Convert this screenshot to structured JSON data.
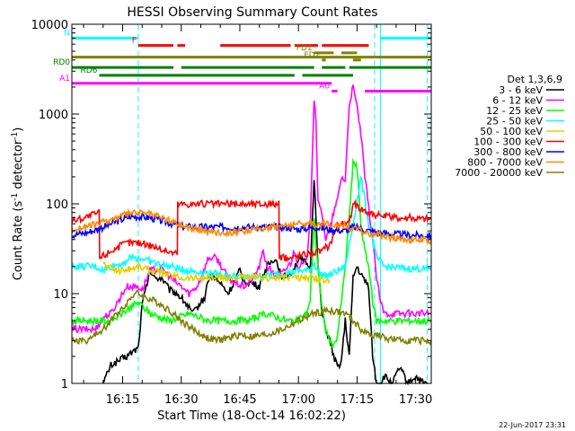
{
  "chart_data": {
    "type": "line",
    "title": "HESSI Observing Summary Count Rates",
    "xlabel": "Start Time (18-Oct-14 16:02:22)",
    "ylabel_main": "Count Rate (s",
    "ylabel_sup1": "-1",
    "ylabel_mid": " detector",
    "ylabel_sup2": "-1",
    "ylabel_end": ")",
    "footer_timestamp": "22-Jun-2017 23:31",
    "x_axis": {
      "start_minutes": 0,
      "end_minutes": 92,
      "ticks": [
        {
          "t": 13,
          "label": "16:15"
        },
        {
          "t": 28,
          "label": "16:30"
        },
        {
          "t": 43,
          "label": "16:45"
        },
        {
          "t": 58,
          "label": "17:00"
        },
        {
          "t": 73,
          "label": "17:15"
        },
        {
          "t": 88,
          "label": "17:30"
        }
      ]
    },
    "y_axis": {
      "scale": "log",
      "ylim": [
        1,
        10000
      ],
      "ticks": [
        {
          "v": 1,
          "label": "1"
        },
        {
          "v": 10,
          "label": "10"
        },
        {
          "v": 100,
          "label": "100"
        },
        {
          "v": 1000,
          "label": "1000"
        },
        {
          "v": 10000,
          "label": "10000"
        }
      ]
    },
    "legend": {
      "title": "Det 1,3,6,9",
      "placement": "right",
      "entries": [
        {
          "label": "3 - 6 keV",
          "color": "#000000"
        },
        {
          "label": "6 - 12 keV",
          "color": "#ff00ff"
        },
        {
          "label": "12 - 25 keV",
          "color": "#00ff00"
        },
        {
          "label": "25 - 50 keV",
          "color": "#00ffff"
        },
        {
          "label": "50 - 100 keV",
          "color": "#e0d000"
        },
        {
          "label": "100 - 300 keV",
          "color": "#ff0000"
        },
        {
          "label": "300 - 800 keV",
          "color": "#0000ff"
        },
        {
          "label": "800 - 7000 keV",
          "color": "#ff8800"
        },
        {
          "label": "7000 - 20000 keV",
          "color": "#808000"
        }
      ]
    },
    "flag_bars": [
      {
        "label": "N",
        "color": "#00ffff",
        "y": 7000,
        "segments": [
          [
            0,
            17
          ],
          [
            79,
            92
          ]
        ]
      },
      {
        "label": "F",
        "color": "#ff0000",
        "y": 5800,
        "segments": [
          [
            17,
            26
          ],
          [
            27,
            29
          ],
          [
            38,
            56
          ],
          [
            57,
            63
          ],
          [
            64,
            76
          ]
        ]
      },
      {
        "label": "FD1",
        "color": "#808000",
        "y": 4800,
        "segments": [
          [
            62,
            67
          ],
          [
            69,
            73
          ]
        ]
      },
      {
        "label": "FD2",
        "color": "#808000",
        "y": 4000,
        "segments": [
          [
            64,
            65
          ],
          [
            72,
            74
          ]
        ]
      },
      {
        "label": "",
        "color": "#808000",
        "y": 4300,
        "segments": [
          [
            0,
            92
          ]
        ]
      },
      {
        "label": "RD0",
        "color": "#008000",
        "y": 3300,
        "segments": [
          [
            0,
            26
          ],
          [
            28,
            62
          ],
          [
            64,
            70
          ],
          [
            71,
            92
          ]
        ]
      },
      {
        "label": "RD6",
        "color": "#008000",
        "y": 2700,
        "segments": [
          [
            7,
            17
          ],
          [
            17,
            57
          ],
          [
            59,
            72
          ]
        ]
      },
      {
        "label": "A1",
        "color": "#ff00ff",
        "y": 2200,
        "segments": [
          [
            0,
            62
          ],
          [
            62,
            66.5
          ]
        ]
      },
      {
        "label": "A0",
        "color": "#ff00ff",
        "y": 1800,
        "segments": [
          [
            66.5,
            68
          ],
          [
            75,
            92
          ]
        ]
      }
    ],
    "vlines": [
      {
        "t": 0,
        "color": "#00ffff",
        "style": "solid"
      },
      {
        "t": 17,
        "color": "#00ffff",
        "style": "dashed"
      },
      {
        "t": 77.5,
        "color": "#00ffff",
        "style": "dashed"
      },
      {
        "t": 79,
        "color": "#00ffff",
        "style": "solid"
      },
      {
        "t": 91,
        "color": "#00ffff",
        "style": "dashed"
      }
    ],
    "series": [
      {
        "name": "3 - 6 keV",
        "color": "#000000",
        "x": [
          8,
          10,
          14,
          17,
          18,
          20,
          21,
          23,
          25,
          27,
          29,
          31,
          33,
          34,
          35,
          36,
          38,
          40,
          41,
          43,
          44,
          46,
          48,
          49,
          50,
          52,
          54,
          56,
          57,
          58,
          60,
          61,
          62,
          63,
          64,
          65,
          66,
          67,
          68,
          69,
          70,
          71,
          72,
          73,
          74,
          75,
          76,
          77,
          78,
          79,
          80,
          82,
          84,
          86,
          88,
          90,
          91
        ],
        "y": [
          1,
          1.6,
          2,
          2.5,
          7.5,
          18,
          15,
          15,
          11,
          10,
          8,
          6,
          8,
          9,
          15,
          16,
          13,
          10,
          12,
          18,
          14,
          13,
          12,
          16,
          20,
          25,
          15,
          17,
          20,
          24,
          22,
          18,
          200,
          22,
          6,
          4,
          3,
          2,
          1.5,
          1.8,
          5,
          2,
          15,
          20,
          16,
          14,
          12,
          2,
          1,
          1,
          1.2,
          1,
          1.5,
          1,
          1.2,
          1,
          1
        ]
      },
      {
        "name": "6 - 12 keV",
        "color": "#ff00ff",
        "x": [
          0,
          6,
          8,
          10,
          14,
          17,
          18,
          20,
          23,
          26,
          28,
          30,
          32,
          33,
          35,
          37,
          40,
          42,
          44,
          46,
          48,
          49,
          50,
          52,
          54,
          56,
          57,
          58,
          60,
          61,
          62,
          62.5,
          63,
          64,
          65,
          66,
          67,
          68,
          69,
          70,
          71,
          72,
          73,
          74,
          75,
          76,
          77,
          78,
          79,
          80,
          85,
          92
        ],
        "y": [
          4,
          4,
          5.5,
          6,
          12,
          12,
          11,
          18,
          19,
          14,
          12,
          10,
          12,
          15,
          25,
          25,
          15,
          13,
          12,
          14,
          20,
          30,
          20,
          16,
          17,
          22,
          30,
          20,
          22,
          60,
          1500,
          900,
          100,
          80,
          40,
          50,
          80,
          110,
          200,
          180,
          1300,
          2000,
          1200,
          600,
          200,
          90,
          40,
          15,
          8,
          6,
          6,
          6
        ]
      },
      {
        "name": "12 - 25 keV",
        "color": "#00ff00",
        "x": [
          0,
          8,
          10,
          14,
          17,
          20,
          25,
          30,
          35,
          40,
          45,
          50,
          55,
          58,
          60,
          61,
          62,
          63,
          64,
          65,
          66,
          67,
          68,
          69,
          70,
          71,
          72,
          73,
          74,
          75,
          76,
          77,
          78,
          80,
          85,
          92
        ],
        "y": [
          5,
          5,
          5,
          6.5,
          8,
          6,
          5,
          6,
          5,
          5,
          5,
          6,
          5,
          5,
          6,
          8,
          70,
          20,
          7,
          4,
          3,
          2.5,
          3.5,
          8,
          20,
          70,
          300,
          250,
          60,
          30,
          20,
          8,
          5,
          5,
          5,
          5
        ]
      },
      {
        "name": "25 - 50 keV",
        "color": "#00ffff",
        "x": [
          0,
          6,
          8,
          10,
          13,
          15,
          17,
          19,
          21,
          25,
          30,
          35,
          40,
          45,
          50,
          55,
          58,
          60,
          61,
          62,
          63,
          64,
          65,
          66,
          67,
          70,
          72,
          74,
          76,
          78,
          80,
          86,
          92
        ],
        "y": [
          20,
          20,
          18,
          20,
          22,
          25,
          25,
          24,
          22,
          20,
          18,
          17,
          16,
          15,
          16,
          17,
          18,
          18,
          19,
          22,
          18,
          16,
          16,
          16,
          17,
          20,
          60,
          200,
          60,
          25,
          20,
          19,
          19
        ]
      },
      {
        "name": "50 - 100 keV",
        "color": "#e0d000",
        "x": [
          8,
          9,
          12,
          15,
          17,
          19,
          21,
          23,
          25,
          26,
          28,
          30,
          33,
          36,
          40,
          44,
          48,
          52,
          55,
          58,
          60,
          62,
          64,
          66
        ],
        "y": [
          22,
          20,
          18,
          19,
          20,
          19,
          18,
          17,
          16,
          16,
          15,
          15,
          15,
          15,
          15,
          15,
          15,
          15,
          15,
          15,
          15,
          15,
          14,
          14
        ]
      },
      {
        "name": "100 - 300 keV",
        "color": "#ff0000",
        "x": [
          0,
          3,
          7,
          7.1,
          10,
          14,
          17,
          20,
          24,
          27,
          27.1,
          30,
          35,
          40,
          45,
          50,
          53,
          53.1,
          56,
          60,
          64,
          66,
          68,
          70,
          71,
          72,
          74,
          76,
          78,
          80,
          85,
          92
        ],
        "y": [
          65,
          70,
          80,
          25,
          30,
          37,
          37,
          35,
          30,
          28,
          100,
          100,
          100,
          100,
          100,
          100,
          100,
          25,
          25,
          28,
          30,
          35,
          60,
          60,
          60,
          100,
          90,
          80,
          75,
          72,
          70,
          68
        ]
      },
      {
        "name": "300 - 800 keV",
        "color": "#0000ff",
        "x": [
          0,
          4,
          8,
          12,
          15,
          17,
          20,
          24,
          28,
          32,
          36,
          40,
          45,
          50,
          55,
          58,
          62,
          66,
          70,
          72,
          74,
          76,
          80,
          85,
          92
        ],
        "y": [
          45,
          48,
          55,
          65,
          72,
          72,
          70,
          63,
          56,
          55,
          55,
          55,
          55,
          55,
          55,
          52,
          55,
          52,
          50,
          55,
          53,
          50,
          47,
          45,
          44
        ]
      },
      {
        "name": "800 - 7000 keV",
        "color": "#ff8800",
        "x": [
          0,
          4,
          8,
          12,
          15,
          17,
          20,
          24,
          28,
          32,
          36,
          40,
          45,
          50,
          55,
          58,
          62,
          66,
          70,
          74,
          78,
          82,
          86,
          92
        ],
        "y": [
          52,
          56,
          62,
          72,
          78,
          80,
          77,
          68,
          58,
          52,
          49,
          48,
          50,
          55,
          58,
          60,
          60,
          60,
          57,
          50,
          45,
          42,
          40,
          39
        ]
      },
      {
        "name": "7000 - 20000 keV",
        "color": "#808000",
        "x": [
          0,
          4,
          8,
          10,
          13,
          16,
          17,
          19,
          22,
          25,
          28,
          31,
          34,
          37,
          40,
          43,
          46,
          50,
          54,
          58,
          62,
          66,
          70,
          72,
          74,
          76,
          78,
          80,
          84,
          88,
          92
        ],
        "y": [
          3,
          3,
          4,
          5,
          7,
          10,
          10,
          9,
          8,
          6.5,
          5,
          4,
          3.3,
          3,
          3.2,
          3.5,
          3.3,
          3.5,
          4,
          5,
          6,
          6.5,
          6,
          5,
          4,
          3.5,
          3.5,
          3.2,
          3,
          3,
          3
        ]
      }
    ]
  }
}
